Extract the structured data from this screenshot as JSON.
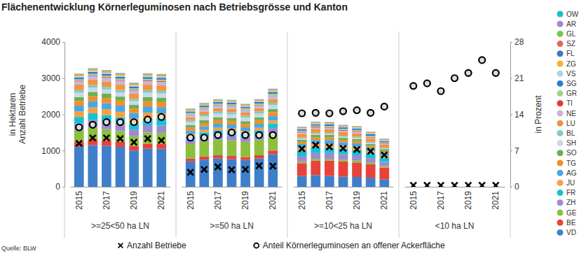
{
  "chart_data": {
    "type": "bar",
    "stacked": true,
    "legend": "right",
    "title": "Flächenentwicklung Körnerleguminosen nach Betriebsgrösse und Kanton",
    "source": "Quelle: BLW",
    "ylabel": [
      "in Hektaren",
      "Anzahl Betriebe"
    ],
    "y2label": "in Prozent",
    "x_groups": [
      ">=25<50 ha LN",
      ">=50 ha LN",
      ">=10<25 ha LN",
      "<10 ha LN"
    ],
    "categories": [
      "2015",
      null,
      "2017",
      null,
      "2019",
      null,
      "2021",
      "2015",
      null,
      "2017",
      null,
      "2019",
      null,
      "2021",
      "2015",
      null,
      "2017",
      null,
      "2019",
      null,
      "2021",
      "2015",
      null,
      "2017",
      null,
      "2019",
      null,
      "2021"
    ],
    "ylim": [
      0,
      4000
    ],
    "yticks": [
      0,
      1000,
      2000,
      3000,
      4000
    ],
    "y2lim": [
      0,
      28
    ],
    "y2ticks": [
      0,
      7,
      14,
      21,
      28
    ],
    "series": [
      {
        "name": "OW",
        "color": "#17becf",
        "values": [
          5,
          5,
          5,
          5,
          5,
          5,
          5,
          5,
          5,
          5,
          5,
          5,
          5,
          5,
          5,
          5,
          5,
          5,
          5,
          5,
          5,
          0,
          0,
          0,
          0,
          0,
          0,
          0
        ]
      },
      {
        "name": "AR",
        "color": "#9e8bc9",
        "values": [
          5,
          5,
          5,
          5,
          5,
          5,
          5,
          5,
          5,
          5,
          5,
          5,
          5,
          5,
          5,
          5,
          5,
          5,
          5,
          5,
          5,
          0,
          0,
          0,
          0,
          0,
          0,
          0
        ]
      },
      {
        "name": "GL",
        "color": "#7fbf4f",
        "values": [
          5,
          5,
          5,
          5,
          5,
          5,
          5,
          5,
          5,
          5,
          5,
          5,
          5,
          5,
          5,
          5,
          5,
          5,
          5,
          5,
          5,
          0,
          0,
          0,
          0,
          0,
          0,
          0
        ]
      },
      {
        "name": "SZ",
        "color": "#e8674f",
        "values": [
          10,
          10,
          10,
          10,
          10,
          10,
          10,
          10,
          10,
          10,
          10,
          10,
          10,
          10,
          10,
          10,
          10,
          10,
          10,
          10,
          10,
          0,
          0,
          0,
          0,
          0,
          0,
          0
        ]
      },
      {
        "name": "FL",
        "color": "#3a78c3",
        "values": [
          10,
          10,
          10,
          10,
          10,
          10,
          10,
          5,
          5,
          5,
          5,
          5,
          5,
          5,
          5,
          5,
          5,
          5,
          5,
          5,
          5,
          0,
          0,
          0,
          0,
          0,
          0,
          0
        ]
      },
      {
        "name": "ZG",
        "color": "#f2b233",
        "values": [
          40,
          40,
          40,
          40,
          40,
          40,
          40,
          30,
          30,
          30,
          30,
          30,
          30,
          40,
          20,
          20,
          20,
          20,
          20,
          20,
          20,
          0,
          0,
          0,
          0,
          0,
          0,
          0
        ]
      },
      {
        "name": "VS",
        "color": "#a6d8e0",
        "values": [
          30,
          30,
          30,
          30,
          30,
          30,
          30,
          20,
          20,
          20,
          20,
          20,
          20,
          20,
          20,
          20,
          20,
          20,
          20,
          20,
          20,
          0,
          0,
          0,
          0,
          0,
          0,
          0
        ]
      },
      {
        "name": "SG",
        "color": "#2a7ad0",
        "values": [
          50,
          50,
          50,
          50,
          50,
          50,
          50,
          40,
          40,
          40,
          40,
          40,
          40,
          50,
          40,
          40,
          40,
          40,
          40,
          40,
          30,
          0,
          0,
          0,
          0,
          0,
          0,
          0
        ]
      },
      {
        "name": "GR",
        "color": "#a8cf8e",
        "values": [
          40,
          40,
          40,
          40,
          40,
          40,
          40,
          40,
          40,
          40,
          40,
          40,
          40,
          50,
          30,
          30,
          30,
          30,
          30,
          30,
          20,
          0,
          0,
          0,
          0,
          0,
          0,
          0
        ]
      },
      {
        "name": "TI",
        "color": "#e03c31",
        "values": [
          20,
          20,
          20,
          20,
          20,
          20,
          20,
          10,
          10,
          10,
          10,
          10,
          10,
          10,
          20,
          20,
          20,
          20,
          20,
          20,
          20,
          0,
          0,
          0,
          0,
          0,
          0,
          0
        ]
      },
      {
        "name": "NE",
        "color": "#c5b6e0",
        "values": [
          90,
          100,
          100,
          100,
          90,
          100,
          100,
          70,
          70,
          80,
          80,
          70,
          80,
          90,
          40,
          40,
          40,
          40,
          40,
          30,
          30,
          0,
          0,
          0,
          0,
          0,
          0,
          0
        ]
      },
      {
        "name": "LU",
        "color": "#f29340",
        "values": [
          150,
          150,
          150,
          150,
          140,
          150,
          150,
          80,
          90,
          90,
          90,
          90,
          90,
          100,
          100,
          110,
          100,
          100,
          100,
          90,
          80,
          0,
          0,
          0,
          0,
          0,
          0,
          0
        ]
      },
      {
        "name": "BL",
        "color": "#7fcdbb",
        "values": [
          70,
          70,
          70,
          70,
          60,
          70,
          70,
          50,
          50,
          60,
          60,
          50,
          60,
          60,
          30,
          30,
          30,
          30,
          30,
          30,
          20,
          0,
          0,
          0,
          0,
          0,
          0,
          0
        ]
      },
      {
        "name": "SH",
        "color": "#cdd5ec",
        "values": [
          120,
          120,
          120,
          120,
          110,
          120,
          120,
          90,
          100,
          100,
          100,
          100,
          100,
          110,
          30,
          30,
          30,
          30,
          30,
          30,
          20,
          0,
          0,
          0,
          0,
          0,
          0,
          0
        ]
      },
      {
        "name": "SO",
        "color": "#6ab04c",
        "values": [
          110,
          120,
          120,
          110,
          100,
          120,
          120,
          70,
          80,
          80,
          80,
          80,
          80,
          90,
          60,
          70,
          70,
          60,
          60,
          50,
          50,
          0,
          0,
          0,
          0,
          0,
          0,
          0
        ]
      },
      {
        "name": "TG",
        "color": "#f28e2b",
        "values": [
          130,
          140,
          140,
          140,
          120,
          140,
          140,
          80,
          90,
          100,
          100,
          90,
          100,
          110,
          60,
          70,
          70,
          60,
          60,
          50,
          50,
          0,
          0,
          0,
          0,
          0,
          0,
          0
        ]
      },
      {
        "name": "AG",
        "color": "#4aa8e0",
        "values": [
          160,
          170,
          170,
          170,
          150,
          170,
          170,
          90,
          100,
          110,
          110,
          100,
          110,
          120,
          100,
          110,
          110,
          100,
          100,
          90,
          80,
          0,
          0,
          0,
          0,
          0,
          0,
          0
        ]
      },
      {
        "name": "JU",
        "color": "#f5a142",
        "values": [
          150,
          160,
          160,
          150,
          140,
          160,
          150,
          60,
          70,
          70,
          70,
          60,
          70,
          80,
          80,
          90,
          90,
          80,
          80,
          70,
          60,
          0,
          0,
          0,
          0,
          0,
          0,
          0
        ]
      },
      {
        "name": "FR",
        "color": "#17c0d4",
        "values": [
          180,
          190,
          190,
          180,
          170,
          190,
          190,
          100,
          110,
          120,
          120,
          110,
          120,
          130,
          150,
          160,
          160,
          150,
          150,
          130,
          110,
          0,
          0,
          0,
          0,
          0,
          0,
          0
        ]
      },
      {
        "name": "ZH",
        "color": "#9b8bd0",
        "values": [
          200,
          210,
          200,
          200,
          180,
          200,
          200,
          120,
          130,
          140,
          140,
          130,
          140,
          150,
          150,
          160,
          160,
          150,
          150,
          130,
          120,
          0,
          0,
          0,
          0,
          0,
          0,
          0
        ]
      },
      {
        "name": "GE",
        "color": "#8cbf3f",
        "values": [
          300,
          320,
          310,
          300,
          270,
          310,
          300,
          400,
          420,
          430,
          430,
          420,
          430,
          470,
          50,
          50,
          50,
          50,
          50,
          40,
          40,
          0,
          0,
          0,
          0,
          0,
          0,
          0
        ]
      },
      {
        "name": "BE",
        "color": "#e8423a",
        "values": [
          150,
          160,
          150,
          140,
          130,
          140,
          140,
          80,
          90,
          90,
          90,
          80,
          90,
          100,
          350,
          400,
          420,
          420,
          400,
          370,
          330,
          0,
          0,
          0,
          0,
          0,
          0,
          0
        ]
      },
      {
        "name": "VD",
        "color": "#3f7fca",
        "values": [
          1100,
          1150,
          1130,
          1100,
          1000,
          1050,
          1050,
          700,
          750,
          780,
          760,
          740,
          780,
          900,
          300,
          320,
          300,
          280,
          270,
          250,
          200,
          0,
          0,
          0,
          0,
          0,
          0,
          0
        ]
      },
      {
        "name": "Anzahl Betriebe",
        "type": "scatter",
        "marker": "x",
        "color": "#000000",
        "values": [
          1200,
          1350,
          1350,
          1330,
          1230,
          1330,
          1280,
          400,
          480,
          550,
          470,
          480,
          580,
          570,
          1050,
          1150,
          1100,
          1060,
          1030,
          980,
          880,
          40,
          40,
          40,
          40,
          40,
          40,
          40
        ]
      },
      {
        "name": "Anteil Körnerleguminosen an offener Ackerfläche",
        "type": "scatter",
        "marker": "o",
        "color": "#000000",
        "axis": "y2",
        "values": [
          11.5,
          12,
          12.5,
          12.5,
          12.5,
          13,
          13.5,
          9.5,
          9.5,
          10,
          10.5,
          10,
          10,
          10,
          14.2,
          14.3,
          14.2,
          14.6,
          14.8,
          14.3,
          15.5,
          19.5,
          20,
          18.5,
          21,
          22,
          24.5,
          22
        ]
      }
    ]
  }
}
